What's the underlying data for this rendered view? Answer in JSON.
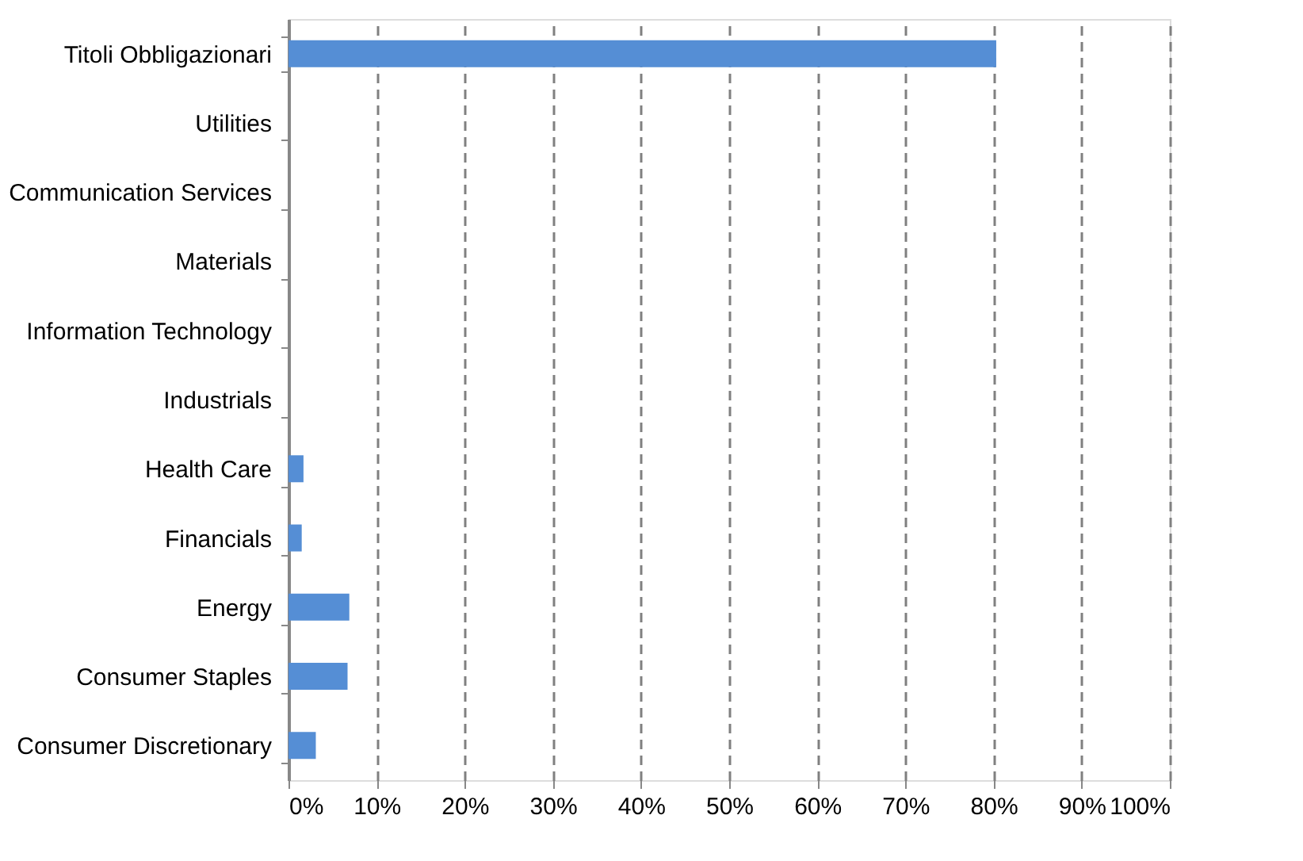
{
  "chart_data": {
    "type": "bar",
    "orientation": "horizontal",
    "categories": [
      "Titoli Obbligazionari",
      "Utilities",
      "Communication Services",
      "Materials",
      "Information Technology",
      "Industrials",
      "Health Care",
      "Financials",
      "Energy",
      "Consumer Staples",
      "Consumer Discretionary"
    ],
    "values": [
      80.3,
      0,
      0,
      0,
      0,
      0,
      1.7,
      1.5,
      6.9,
      6.7,
      3.1
    ],
    "color": "#558ed5",
    "xlim": [
      0,
      100
    ],
    "xticks": [
      {
        "value": 0,
        "label": "0%"
      },
      {
        "value": 10,
        "label": "10%"
      },
      {
        "value": 20,
        "label": "20%"
      },
      {
        "value": 30,
        "label": "30%"
      },
      {
        "value": 40,
        "label": "40%"
      },
      {
        "value": 50,
        "label": "50%"
      },
      {
        "value": 60,
        "label": "60%"
      },
      {
        "value": 70,
        "label": "70%"
      },
      {
        "value": 80,
        "label": "80%"
      },
      {
        "value": 90,
        "label": "90%"
      },
      {
        "value": 100,
        "label": "100%"
      }
    ],
    "grid": "x"
  }
}
